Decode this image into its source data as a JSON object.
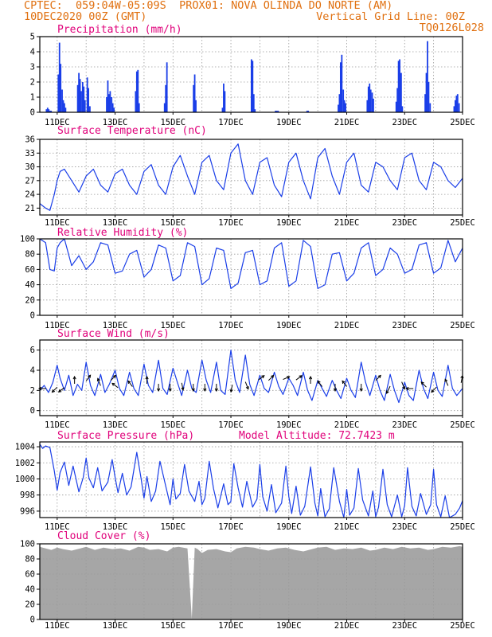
{
  "header": {
    "line1_left": "CPTEC:  059:04W-05:09S  PROX01: NOVA OLINDA DO NORTE (AM)",
    "line2_left": "10DEC2020 00Z (GMT)",
    "line2_right": "Vertical Grid Line: 00Z",
    "line3_right": "TQ0126L028"
  },
  "colors": {
    "header": "#e07010",
    "title": "#e0007a",
    "series": "#1a3ee8",
    "cloud": "#a6a6a6",
    "grid": "#9a9a9a"
  },
  "chart_data": [
    {
      "id": "precip",
      "type": "bar",
      "title": "Precipitation (mm/h)",
      "ylim": [
        0,
        5
      ],
      "yticks": [
        0,
        1,
        2,
        3,
        4,
        5
      ],
      "xticks": [
        "11DEC",
        "13DEC",
        "15DEC",
        "17DEC",
        "19DEC",
        "21DEC",
        "23DEC",
        "25DEC"
      ],
      "x_start_day": 10.4,
      "x_end_day": 25,
      "x": [
        10.63,
        10.67,
        10.71,
        10.75,
        10.79,
        11.04,
        11.08,
        11.12,
        11.17,
        11.21,
        11.25,
        11.29,
        11.71,
        11.75,
        11.79,
        11.83,
        11.88,
        11.92,
        11.96,
        12.04,
        12.08,
        12.13,
        12.71,
        12.75,
        12.79,
        12.83,
        12.88,
        12.92,
        12.96,
        13.71,
        13.75,
        13.79,
        13.83,
        14.71,
        14.75,
        14.79,
        15.71,
        15.75,
        15.79,
        16.71,
        16.75,
        16.79,
        17.71,
        17.75,
        17.79,
        17.83,
        18.54,
        18.58,
        18.63,
        19.63,
        19.67,
        20.71,
        20.75,
        20.79,
        20.83,
        20.88,
        20.92,
        20.96,
        21.71,
        21.75,
        21.79,
        21.83,
        21.88,
        21.92,
        22.71,
        22.75,
        22.79,
        22.83,
        22.88,
        22.92,
        23.71,
        23.75,
        23.79,
        23.83,
        23.88,
        24.71,
        24.75,
        24.79,
        24.83,
        24.88
      ],
      "values": [
        0.2,
        0.3,
        0.2,
        0.1,
        0.1,
        2.5,
        4.6,
        3.2,
        1.5,
        0.8,
        0.6,
        0.3,
        1.8,
        2.6,
        2.2,
        1.4,
        2.0,
        1.7,
        0.8,
        2.3,
        1.6,
        0.4,
        1.0,
        2.1,
        1.2,
        1.4,
        1.0,
        0.6,
        0.3,
        1.4,
        2.7,
        2.8,
        0.6,
        0.6,
        1.8,
        3.3,
        1.8,
        2.5,
        0.8,
        0.3,
        1.9,
        1.4,
        3.5,
        3.4,
        1.2,
        0.2,
        0.1,
        0.1,
        0.1,
        0.1,
        0.1,
        0.5,
        1.2,
        3.3,
        3.8,
        1.5,
        0.8,
        0.6,
        0.8,
        1.7,
        1.9,
        1.5,
        1.3,
        0.9,
        0.7,
        1.6,
        3.4,
        3.5,
        2.6,
        0.4,
        1.2,
        2.6,
        4.7,
        2.0,
        0.6,
        0.4,
        0.8,
        1.1,
        1.2,
        0.6
      ]
    },
    {
      "id": "temp",
      "type": "line",
      "title": "Surface Temperature (nC)",
      "ylim": [
        19.5,
        36
      ],
      "yticks": [
        21,
        24,
        27,
        30,
        33,
        36
      ],
      "xticks": [
        "11DEC",
        "13DEC",
        "15DEC",
        "17DEC",
        "19DEC",
        "21DEC",
        "23DEC",
        "25DEC"
      ],
      "x_start_day": 10.4,
      "x_end_day": 25,
      "x": [
        10.4,
        10.5,
        10.6,
        10.75,
        10.9,
        11.0,
        11.1,
        11.25,
        11.5,
        11.75,
        12.0,
        12.25,
        12.5,
        12.75,
        13.0,
        13.25,
        13.5,
        13.75,
        14.0,
        14.25,
        14.5,
        14.75,
        15.0,
        15.25,
        15.5,
        15.75,
        16.0,
        16.25,
        16.5,
        16.75,
        17.0,
        17.25,
        17.5,
        17.75,
        18.0,
        18.25,
        18.5,
        18.75,
        19.0,
        19.25,
        19.5,
        19.75,
        20.0,
        20.25,
        20.5,
        20.75,
        21.0,
        21.25,
        21.5,
        21.75,
        22.0,
        22.25,
        22.5,
        22.75,
        23.0,
        23.25,
        23.5,
        23.75,
        24.0,
        24.25,
        24.5,
        24.75,
        25.0
      ],
      "values": [
        22,
        21.5,
        21,
        20.5,
        24,
        27,
        29,
        29.5,
        27,
        24.5,
        28,
        29.5,
        26,
        24.5,
        28.5,
        29.5,
        26,
        24,
        29,
        30.5,
        26,
        24,
        30,
        32.5,
        28,
        24,
        31,
        32.5,
        27,
        25,
        33,
        35,
        27,
        24,
        31,
        32,
        26,
        23.5,
        31,
        33,
        27,
        23,
        32,
        34,
        28,
        24,
        31,
        33,
        26,
        24.5,
        31,
        30,
        27,
        25,
        32,
        33,
        27,
        25,
        31,
        30,
        27,
        25.5,
        27.5
      ]
    },
    {
      "id": "rh",
      "type": "line",
      "title": "Relative Humidity (%)",
      "ylim": [
        0,
        100
      ],
      "yticks": [
        0,
        20,
        40,
        60,
        80,
        100
      ],
      "xticks": [
        "11DEC",
        "13DEC",
        "15DEC",
        "17DEC",
        "19DEC",
        "21DEC",
        "23DEC",
        "25DEC"
      ],
      "x_start_day": 10.4,
      "x_end_day": 25,
      "x": [
        10.4,
        10.6,
        10.75,
        10.9,
        11.0,
        11.1,
        11.25,
        11.5,
        11.75,
        12.0,
        12.25,
        12.5,
        12.75,
        13.0,
        13.25,
        13.5,
        13.75,
        14.0,
        14.25,
        14.5,
        14.75,
        15.0,
        15.25,
        15.5,
        15.75,
        16.0,
        16.25,
        16.5,
        16.75,
        17.0,
        17.25,
        17.5,
        17.75,
        18.0,
        18.25,
        18.5,
        18.75,
        19.0,
        19.25,
        19.5,
        19.75,
        20.0,
        20.25,
        20.5,
        20.75,
        21.0,
        21.25,
        21.5,
        21.75,
        22.0,
        22.25,
        22.5,
        22.75,
        23.0,
        23.25,
        23.5,
        23.75,
        24.0,
        24.25,
        24.5,
        24.75,
        25.0
      ],
      "values": [
        100,
        95,
        60,
        58,
        88,
        95,
        100,
        65,
        78,
        60,
        70,
        95,
        92,
        55,
        58,
        80,
        85,
        50,
        60,
        92,
        88,
        45,
        52,
        95,
        90,
        40,
        48,
        88,
        85,
        35,
        42,
        82,
        85,
        40,
        45,
        88,
        95,
        38,
        45,
        98,
        90,
        35,
        40,
        80,
        82,
        45,
        55,
        88,
        95,
        52,
        60,
        88,
        80,
        55,
        60,
        92,
        95,
        55,
        62,
        98,
        70,
        88
      ]
    },
    {
      "id": "wind",
      "type": "line",
      "title": "Surface Wind (m/s)",
      "ylim": [
        -0.5,
        7
      ],
      "yticks": [
        0,
        2,
        4,
        6
      ],
      "xticks": [
        "11DEC",
        "13DEC",
        "15DEC",
        "17DEC",
        "19DEC",
        "21DEC",
        "23DEC",
        "25DEC"
      ],
      "x_start_day": 10.4,
      "x_end_day": 25,
      "x": [
        10.4,
        10.55,
        10.7,
        10.85,
        11.0,
        11.1,
        11.25,
        11.4,
        11.55,
        11.7,
        11.85,
        12.0,
        12.15,
        12.3,
        12.5,
        12.65,
        12.8,
        13.0,
        13.15,
        13.3,
        13.5,
        13.65,
        13.8,
        14.0,
        14.15,
        14.3,
        14.5,
        14.65,
        14.8,
        15.0,
        15.15,
        15.3,
        15.5,
        15.65,
        15.8,
        16.0,
        16.15,
        16.3,
        16.5,
        16.65,
        16.8,
        17.0,
        17.15,
        17.3,
        17.5,
        17.65,
        17.8,
        18.0,
        18.15,
        18.3,
        18.5,
        18.65,
        18.8,
        19.0,
        19.15,
        19.3,
        19.5,
        19.65,
        19.8,
        20.0,
        20.15,
        20.3,
        20.5,
        20.65,
        20.8,
        21.0,
        21.15,
        21.3,
        21.5,
        21.65,
        21.8,
        22.0,
        22.15,
        22.3,
        22.5,
        22.65,
        22.8,
        23.0,
        23.15,
        23.3,
        23.5,
        23.65,
        23.8,
        24.0,
        24.15,
        24.3,
        24.5,
        24.65,
        24.8,
        25.0
      ],
      "values": [
        2.0,
        2.5,
        1.8,
        2.8,
        4.5,
        3.2,
        2.0,
        3.5,
        1.5,
        2.6,
        2.0,
        4.8,
        2.5,
        1.5,
        3.6,
        1.8,
        2.6,
        4.0,
        2.2,
        1.5,
        3.8,
        2.2,
        1.5,
        4.6,
        2.5,
        1.8,
        5.0,
        2.2,
        1.6,
        4.2,
        2.8,
        1.5,
        4.0,
        2.2,
        1.8,
        5.0,
        3.0,
        1.8,
        4.8,
        2.0,
        1.6,
        6.0,
        3.0,
        1.8,
        5.5,
        2.6,
        1.5,
        3.5,
        2.2,
        1.8,
        3.8,
        2.4,
        1.6,
        3.2,
        2.5,
        1.5,
        3.8,
        2.0,
        1.0,
        3.0,
        2.2,
        1.4,
        3.0,
        2.0,
        1.2,
        3.2,
        2.0,
        1.3,
        4.8,
        2.8,
        1.5,
        3.5,
        2.0,
        1.0,
        3.6,
        2.0,
        0.8,
        2.8,
        1.5,
        1.0,
        4.0,
        2.2,
        1.2,
        3.8,
        2.0,
        1.4,
        4.5,
        2.2,
        1.5,
        2.2
      ]
    },
    {
      "id": "pres",
      "type": "line",
      "title": "Surface Pressure (hPa)",
      "annotation": "Model Altitude: 72.7423 m",
      "ylim": [
        995.2,
        1004.6
      ],
      "yticks": [
        996,
        998,
        1000,
        1002,
        1004
      ],
      "xticks": [
        "11DEC",
        "13DEC",
        "15DEC",
        "17DEC",
        "19DEC",
        "21DEC",
        "23DEC",
        "25DEC"
      ],
      "x_start_day": 10.4,
      "x_end_day": 25,
      "x": [
        10.4,
        10.5,
        10.6,
        10.75,
        10.9,
        11.0,
        11.1,
        11.25,
        11.4,
        11.55,
        11.75,
        11.9,
        12.0,
        12.1,
        12.25,
        12.4,
        12.55,
        12.75,
        12.9,
        13.0,
        13.1,
        13.25,
        13.4,
        13.55,
        13.75,
        13.9,
        14.0,
        14.1,
        14.25,
        14.4,
        14.55,
        14.75,
        14.9,
        15.0,
        15.1,
        15.25,
        15.4,
        15.55,
        15.75,
        15.9,
        16.0,
        16.1,
        16.25,
        16.4,
        16.55,
        16.75,
        16.9,
        17.0,
        17.1,
        17.25,
        17.4,
        17.55,
        17.75,
        17.9,
        18.0,
        18.1,
        18.25,
        18.4,
        18.55,
        18.75,
        18.9,
        19.0,
        19.1,
        19.25,
        19.4,
        19.55,
        19.75,
        19.9,
        20.0,
        20.1,
        20.25,
        20.4,
        20.55,
        20.75,
        20.9,
        21.0,
        21.1,
        21.25,
        21.4,
        21.55,
        21.75,
        21.9,
        22.0,
        22.1,
        22.25,
        22.4,
        22.55,
        22.75,
        22.9,
        23.0,
        23.1,
        23.25,
        23.4,
        23.55,
        23.75,
        23.9,
        24.0,
        24.1,
        24.25,
        24.4,
        24.55,
        24.75,
        24.9,
        25.0
      ],
      "values": [
        1004.3,
        1003.8,
        1004.1,
        1003.9,
        1001.0,
        998.6,
        1000.8,
        1002.1,
        999.2,
        1001.6,
        998.4,
        1000.2,
        1002.6,
        1000.1,
        998.9,
        1001.4,
        998.5,
        999.6,
        1002.4,
        1000.2,
        998.3,
        1000.7,
        998.0,
        999.0,
        1003.3,
        1000.0,
        997.6,
        1000.3,
        997.2,
        998.5,
        1002.2,
        999.1,
        996.8,
        1000.0,
        997.5,
        998.2,
        1001.8,
        998.5,
        997.2,
        999.7,
        996.8,
        997.6,
        1002.2,
        998.8,
        996.4,
        999.4,
        996.8,
        997.2,
        1001.9,
        998.9,
        996.5,
        999.7,
        996.5,
        997.5,
        1001.8,
        997.8,
        996.0,
        999.3,
        995.8,
        997.0,
        1001.6,
        997.8,
        995.7,
        999.1,
        995.5,
        996.6,
        1001.5,
        997.0,
        995.4,
        998.8,
        995.3,
        996.3,
        1001.4,
        997.2,
        995.2,
        998.7,
        995.5,
        996.4,
        1001.3,
        997.4,
        995.4,
        998.5,
        995.3,
        996.5,
        1001.2,
        996.8,
        995.3,
        998.0,
        995.3,
        996.7,
        1001.4,
        996.6,
        995.4,
        998.2,
        995.6,
        996.8,
        1001.2,
        996.8,
        995.3,
        997.9,
        995.2,
        995.6,
        996.4,
        997.3
      ]
    },
    {
      "id": "cloud",
      "type": "area",
      "title": "Cloud Cover (%)",
      "ylim": [
        0,
        100
      ],
      "yticks": [
        0,
        20,
        40,
        60,
        80,
        100
      ],
      "xticks": [
        "11DEC",
        "13DEC",
        "15DEC",
        "17DEC",
        "19DEC",
        "21DEC",
        "23DEC",
        "25DEC"
      ],
      "x_start_day": 10.4,
      "x_end_day": 25,
      "x": [
        10.4,
        10.6,
        10.8,
        11.0,
        11.2,
        11.5,
        11.8,
        12.0,
        12.3,
        12.6,
        12.9,
        13.2,
        13.5,
        13.8,
        14.0,
        14.2,
        14.5,
        14.8,
        15.0,
        15.2,
        15.5,
        15.65,
        15.75,
        15.85,
        16.0,
        16.2,
        16.5,
        16.8,
        17.0,
        17.2,
        17.5,
        17.8,
        18.0,
        18.3,
        18.6,
        18.9,
        19.2,
        19.5,
        19.8,
        20.0,
        20.3,
        20.6,
        20.9,
        21.2,
        21.5,
        21.8,
        22.0,
        22.3,
        22.6,
        22.9,
        23.2,
        23.5,
        23.8,
        24.0,
        24.3,
        24.6,
        24.9,
        25.0
      ],
      "values": [
        96,
        94,
        92,
        95,
        93,
        91,
        94,
        96,
        92,
        95,
        93,
        94,
        91,
        96,
        95,
        92,
        93,
        90,
        95,
        96,
        94,
        1,
        95,
        93,
        88,
        92,
        93,
        90,
        89,
        94,
        96,
        95,
        93,
        91,
        94,
        95,
        92,
        90,
        93,
        95,
        96,
        92,
        94,
        93,
        95,
        91,
        92,
        95,
        93,
        96,
        94,
        95,
        92,
        93,
        96,
        95,
        97,
        96
      ]
    }
  ]
}
